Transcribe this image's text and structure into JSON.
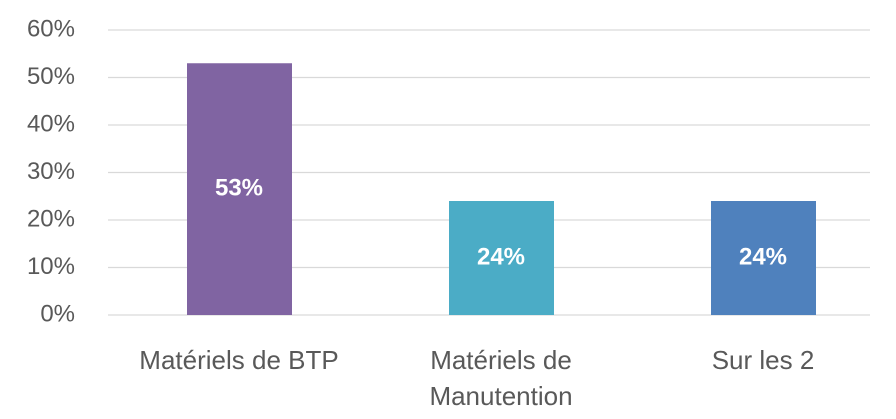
{
  "chart_data": {
    "type": "bar",
    "categories": [
      "Matériels de BTP",
      "Matériels de Manutention",
      "Sur les 2"
    ],
    "values": [
      53,
      24,
      24
    ],
    "value_labels": [
      "53%",
      "24%",
      "24%"
    ],
    "colors": [
      "#8064a2",
      "#4bacc6",
      "#4f81bd"
    ],
    "ylim": [
      0,
      60
    ],
    "yticks": [
      {
        "value": 0,
        "label": "0%"
      },
      {
        "value": 10,
        "label": "10%"
      },
      {
        "value": 20,
        "label": "20%"
      },
      {
        "value": 30,
        "label": "30%"
      },
      {
        "value": 40,
        "label": "40%"
      },
      {
        "value": 50,
        "label": "50%"
      },
      {
        "value": 60,
        "label": "60%"
      }
    ],
    "grid": true
  }
}
